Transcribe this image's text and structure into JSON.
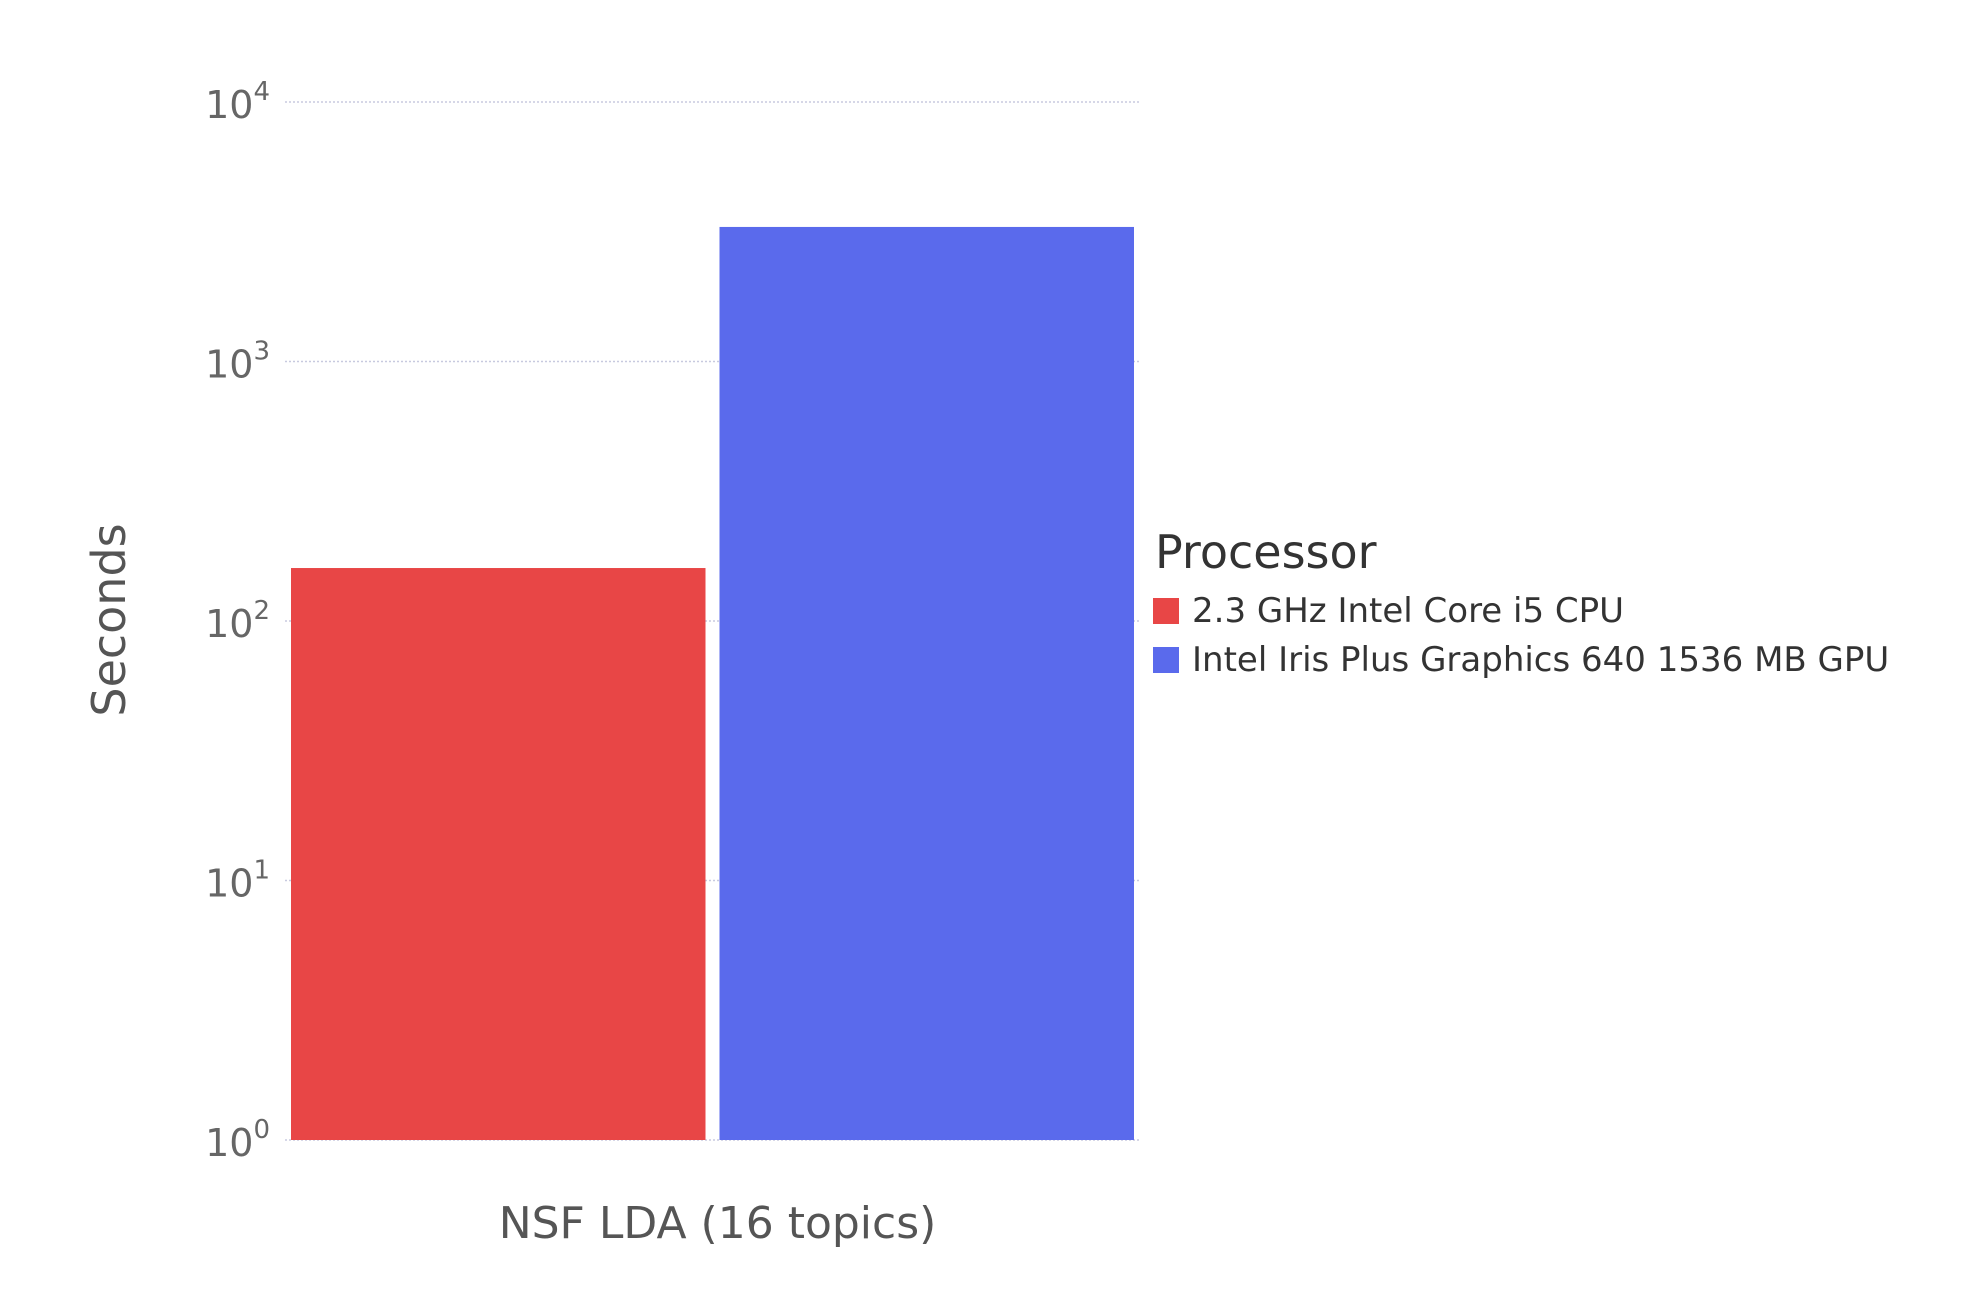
{
  "chart_data": {
    "type": "bar",
    "title": "",
    "xlabel": "",
    "ylabel": "Seconds",
    "yscale": "log",
    "ylim": [
      1,
      10000
    ],
    "y_ticks": [
      {
        "value": 1,
        "base": "10",
        "exp": "0"
      },
      {
        "value": 10,
        "base": "10",
        "exp": "1"
      },
      {
        "value": 100,
        "base": "10",
        "exp": "2"
      },
      {
        "value": 1000,
        "base": "10",
        "exp": "3"
      },
      {
        "value": 10000,
        "base": "10",
        "exp": "4"
      }
    ],
    "categories": [
      "NSF LDA (16 topics)"
    ],
    "series": [
      {
        "name": "2.3 GHz Intel Core i5 CPU",
        "color": "#e84646",
        "values": [
          160
        ]
      },
      {
        "name": "Intel Iris Plus Graphics 640 1536 MB GPU",
        "color": "#5a6aec",
        "values": [
          3300
        ]
      }
    ],
    "grid": true,
    "legend": {
      "title": "Processor",
      "placement": "right"
    }
  }
}
